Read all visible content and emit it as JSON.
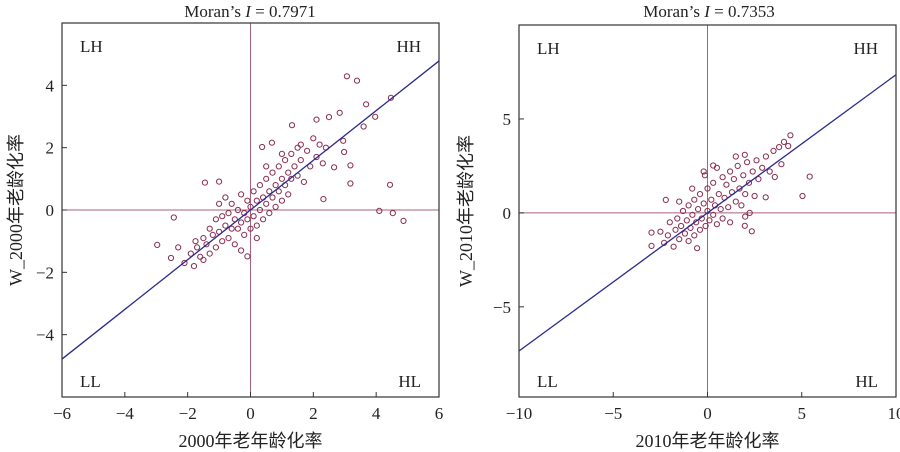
{
  "chart_data": [
    {
      "type": "scatter",
      "title_prefix": "Moran’s ",
      "title_var": "I",
      "title_suffix": " = 0.7971",
      "xlabel": "2000年老年龄化率",
      "ylabel": "W_2000年老龄化率",
      "xlim": [
        -6,
        6
      ],
      "ylim": [
        -6,
        6
      ],
      "xticks": [
        -6,
        -4,
        -2,
        0,
        2,
        4,
        6
      ],
      "xtick_labels": [
        "−6",
        "−4",
        "−2",
        "0",
        "2",
        "4",
        "6"
      ],
      "yticks": [
        -4,
        -2,
        0,
        2,
        4
      ],
      "ytick_labels": [
        "−4",
        "−2",
        "0",
        "2",
        "4"
      ],
      "quadrants": {
        "lh": "LH",
        "hh": "HH",
        "ll": "LL",
        "hl": "HL"
      },
      "regression_slope": 0.7971,
      "grid": false,
      "points": [
        [
          3.07,
          4.29
        ],
        [
          3.39,
          4.15
        ],
        [
          4.47,
          3.6
        ],
        [
          3.68,
          3.39
        ],
        [
          3.97,
          2.99
        ],
        [
          3.6,
          2.68
        ],
        [
          4.44,
          0.81
        ],
        [
          4.1,
          -0.03
        ],
        [
          4.53,
          -0.1
        ],
        [
          4.87,
          -0.35
        ],
        [
          3.18,
          1.43
        ],
        [
          3.18,
          0.85
        ],
        [
          2.98,
          1.86
        ],
        [
          2.95,
          2.22
        ],
        [
          2.32,
          0.35
        ],
        [
          2.66,
          1.37
        ],
        [
          2.1,
          2.9
        ],
        [
          2.5,
          2.98
        ],
        [
          2.84,
          3.12
        ],
        [
          1.32,
          2.72
        ],
        [
          -2.97,
          -1.12
        ],
        [
          -2.44,
          -0.24
        ],
        [
          -2.53,
          -1.54
        ],
        [
          -1.45,
          0.88
        ],
        [
          -1.0,
          0.91
        ],
        [
          -0.1,
          -1.49
        ],
        [
          0.37,
          2.02
        ],
        [
          0.68,
          2.16
        ],
        [
          -2.1,
          -1.7
        ],
        [
          -1.9,
          -1.4
        ],
        [
          -1.8,
          -1.8
        ],
        [
          -1.7,
          -1.2
        ],
        [
          -1.6,
          -1.5
        ],
        [
          -1.5,
          -0.9
        ],
        [
          -1.5,
          -1.6
        ],
        [
          -1.4,
          -1.1
        ],
        [
          -1.3,
          -0.6
        ],
        [
          -1.3,
          -1.4
        ],
        [
          -1.2,
          -0.8
        ],
        [
          -1.1,
          -1.2
        ],
        [
          -1.1,
          -0.3
        ],
        [
          -1.0,
          -0.7
        ],
        [
          -0.9,
          -1.0
        ],
        [
          -0.9,
          -0.2
        ],
        [
          -0.8,
          -0.5
        ],
        [
          -0.8,
          0.4
        ],
        [
          -0.7,
          -0.9
        ],
        [
          -0.7,
          -0.1
        ],
        [
          -0.6,
          -0.6
        ],
        [
          -0.6,
          0.2
        ],
        [
          -0.5,
          -0.3
        ],
        [
          -0.5,
          -1.1
        ],
        [
          -0.4,
          0.0
        ],
        [
          -0.4,
          -0.6
        ],
        [
          -0.3,
          0.5
        ],
        [
          -0.3,
          -0.4
        ],
        [
          -0.2,
          -0.1
        ],
        [
          -0.2,
          -0.8
        ],
        [
          -0.1,
          0.3
        ],
        [
          -0.1,
          -0.3
        ],
        [
          0.0,
          0.1
        ],
        [
          0.0,
          -0.6
        ],
        [
          0.1,
          0.6
        ],
        [
          0.1,
          -0.2
        ],
        [
          0.2,
          0.3
        ],
        [
          0.2,
          -0.5
        ],
        [
          0.3,
          0.8
        ],
        [
          0.3,
          0.0
        ],
        [
          0.4,
          0.4
        ],
        [
          0.4,
          -0.3
        ],
        [
          0.5,
          1.0
        ],
        [
          0.5,
          0.2
        ],
        [
          0.6,
          0.6
        ],
        [
          0.6,
          -0.1
        ],
        [
          0.7,
          1.2
        ],
        [
          0.7,
          0.4
        ],
        [
          0.8,
          0.8
        ],
        [
          0.8,
          0.1
        ],
        [
          0.9,
          1.4
        ],
        [
          0.9,
          0.6
        ],
        [
          1.0,
          1.0
        ],
        [
          1.0,
          0.3
        ],
        [
          1.1,
          1.6
        ],
        [
          1.1,
          0.8
        ],
        [
          1.2,
          1.2
        ],
        [
          1.2,
          0.5
        ],
        [
          1.3,
          1.8
        ],
        [
          1.3,
          1.0
        ],
        [
          1.4,
          1.4
        ],
        [
          1.5,
          2.0
        ],
        [
          1.5,
          1.1
        ],
        [
          1.6,
          1.6
        ],
        [
          1.7,
          0.9
        ],
        [
          1.8,
          1.9
        ],
        [
          1.9,
          1.4
        ],
        [
          2.0,
          2.3
        ],
        [
          2.1,
          1.7
        ],
        [
          2.2,
          2.1
        ],
        [
          2.3,
          1.5
        ],
        [
          2.4,
          2.0
        ],
        [
          -1.75,
          -1.0
        ],
        [
          -2.3,
          -1.2
        ],
        [
          -1.0,
          0.2
        ],
        [
          0.5,
          1.4
        ],
        [
          1.0,
          1.8
        ],
        [
          1.6,
          2.1
        ],
        [
          -0.3,
          -1.3
        ],
        [
          0.2,
          -0.9
        ]
      ]
    },
    {
      "type": "scatter",
      "title_prefix": "Moran’s ",
      "title_var": "I",
      "title_suffix": " = 0.7353",
      "xlabel": "2010年老年龄化率",
      "ylabel": "W_2010年老龄化率",
      "xlim": [
        -10,
        10
      ],
      "ylim": [
        -9.8,
        10
      ],
      "xticks": [
        -10,
        -5,
        0,
        5,
        10
      ],
      "xtick_labels": [
        "−10",
        "−5",
        "0",
        "5",
        "10"
      ],
      "yticks": [
        -5,
        0,
        5
      ],
      "ytick_labels": [
        "−5",
        "0",
        "5"
      ],
      "quadrants": {
        "lh": "LH",
        "hh": "HH",
        "ll": "LL",
        "hl": "HL"
      },
      "regression_slope": 0.7353,
      "grid": false,
      "points": [
        [
          4.4,
          4.13
        ],
        [
          4.06,
          3.78
        ],
        [
          5.42,
          1.93
        ],
        [
          5.04,
          0.9
        ],
        [
          3.09,
          0.83
        ],
        [
          3.57,
          1.91
        ],
        [
          2.35,
          -0.98
        ],
        [
          1.98,
          -0.69
        ],
        [
          2.24,
          0
        ],
        [
          -0.55,
          -1.88
        ],
        [
          -2.97,
          -1.05
        ],
        [
          -2.97,
          -1.76
        ],
        [
          -2.21,
          0.69
        ],
        [
          -0.81,
          1.29
        ],
        [
          -0.14,
          2.0
        ],
        [
          0.3,
          2.52
        ],
        [
          1.98,
          3.09
        ],
        [
          3.92,
          2.59
        ],
        [
          4.28,
          3.56
        ],
        [
          -2.3,
          -1.6
        ],
        [
          -2.1,
          -1.2
        ],
        [
          -2.0,
          -0.5
        ],
        [
          -1.8,
          -1.8
        ],
        [
          -1.7,
          -0.9
        ],
        [
          -1.6,
          -0.3
        ],
        [
          -1.5,
          -1.4
        ],
        [
          -1.4,
          -0.7
        ],
        [
          -1.3,
          0.1
        ],
        [
          -1.2,
          -1.1
        ],
        [
          -1.1,
          -0.4
        ],
        [
          -1.0,
          -1.5
        ],
        [
          -1.0,
          0.4
        ],
        [
          -0.9,
          -0.8
        ],
        [
          -0.8,
          -0.1
        ],
        [
          -0.7,
          -1.2
        ],
        [
          -0.7,
          0.7
        ],
        [
          -0.6,
          -0.5
        ],
        [
          -0.5,
          0.2
        ],
        [
          -0.4,
          -0.9
        ],
        [
          -0.4,
          1.0
        ],
        [
          -0.3,
          -0.3
        ],
        [
          -0.2,
          0.5
        ],
        [
          -0.1,
          -0.7
        ],
        [
          0.0,
          0.1
        ],
        [
          0.0,
          1.3
        ],
        [
          0.1,
          -0.4
        ],
        [
          0.2,
          0.7
        ],
        [
          0.3,
          -0.1
        ],
        [
          0.3,
          1.6
        ],
        [
          0.4,
          0.4
        ],
        [
          0.5,
          -0.6
        ],
        [
          0.6,
          1.0
        ],
        [
          0.7,
          0.2
        ],
        [
          0.8,
          1.9
        ],
        [
          0.8,
          -0.3
        ],
        [
          0.9,
          0.8
        ],
        [
          1.0,
          1.5
        ],
        [
          1.1,
          0.3
        ],
        [
          1.2,
          2.2
        ],
        [
          1.2,
          -0.5
        ],
        [
          1.3,
          1.1
        ],
        [
          1.4,
          1.8
        ],
        [
          1.5,
          0.6
        ],
        [
          1.6,
          2.5
        ],
        [
          1.7,
          1.3
        ],
        [
          1.8,
          0.4
        ],
        [
          1.9,
          2.0
        ],
        [
          2.0,
          1.0
        ],
        [
          2.1,
          2.7
        ],
        [
          2.2,
          1.6
        ],
        [
          2.4,
          2.2
        ],
        [
          2.5,
          0.9
        ],
        [
          2.6,
          2.8
        ],
        [
          2.7,
          1.8
        ],
        [
          2.9,
          2.4
        ],
        [
          3.1,
          3.0
        ],
        [
          3.3,
          2.2
        ],
        [
          3.5,
          3.3
        ],
        [
          3.8,
          3.5
        ],
        [
          1.5,
          3.0
        ],
        [
          -1.5,
          0.6
        ],
        [
          -0.2,
          2.2
        ],
        [
          0.5,
          2.4
        ],
        [
          2.0,
          -0.2
        ],
        [
          -2.5,
          -1.0
        ]
      ]
    }
  ],
  "colors": {
    "point": "#8a2d4e",
    "quadrant_line": "#a8607f",
    "regression": "#2a2a8e",
    "frame": "#333333"
  }
}
